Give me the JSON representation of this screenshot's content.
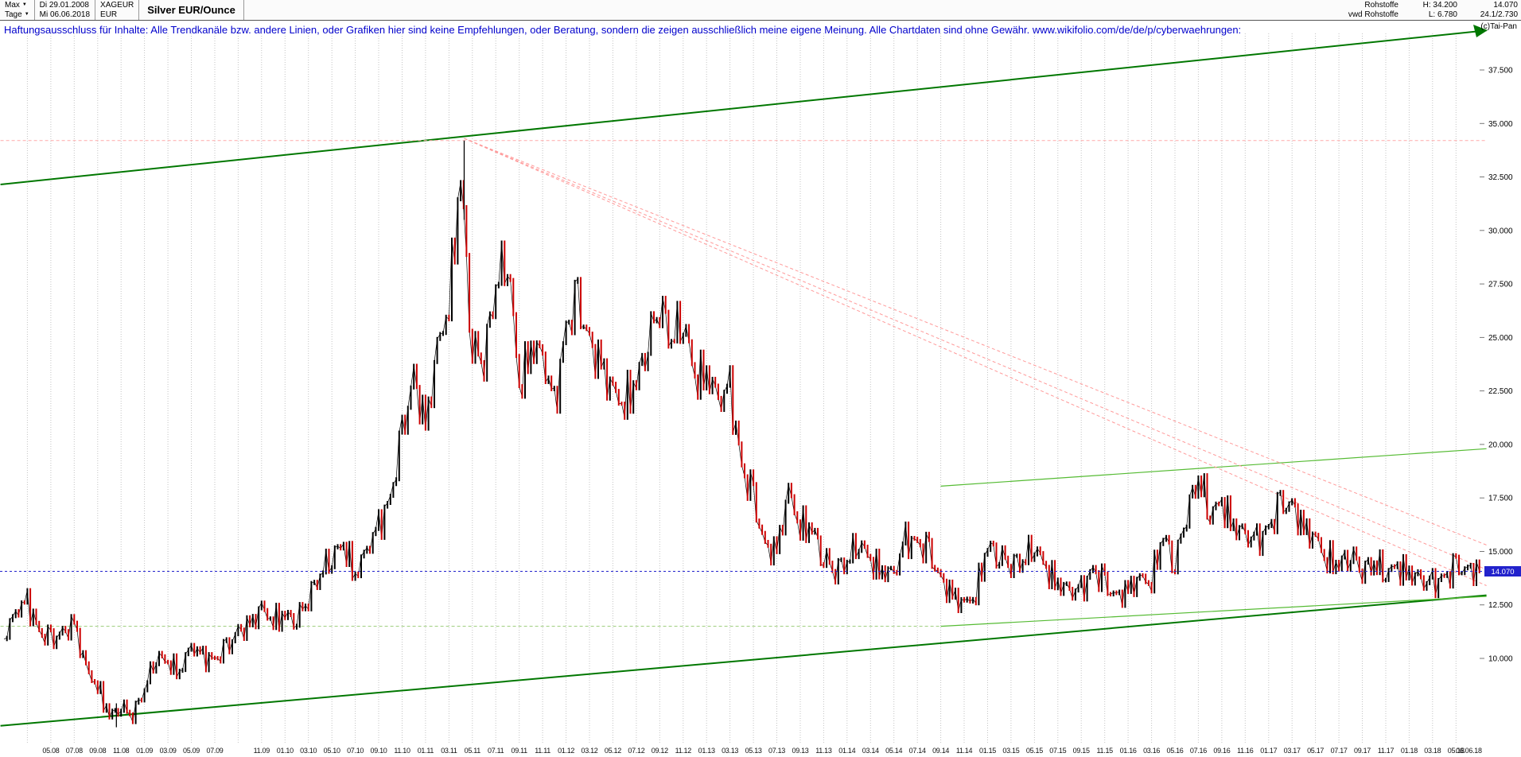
{
  "window": {
    "title": "Silver EUR/Ounce",
    "range_selector": "Max",
    "period_selector": "Tage",
    "start_date": "Di 29.01.2008",
    "end_date": "Mi 06.06.2018",
    "symbol": "XAGEUR",
    "currency": "EUR",
    "category": "Rohstoffe",
    "feed": "vwd Rohstoffe",
    "high_label": "H: 34.200",
    "low_label": "L: 6.780",
    "last_price": "14.070",
    "change_info": "24.1/2.730",
    "copyright": "(c)Tai-Pan"
  },
  "disclaimer": "Haftungsausschluss für Inhalte: Alle Trendkanäle bzw. andere Linien, oder Grafiken hier sind keine Empfehlungen, oder Beratung, sondern die zeigen ausschließlich meine eigene Meinung. Alle Chartdaten sind ohne Gewähr.  www.wikifolio.com/de/de/p/cyberwaehrungen:",
  "chart_data": {
    "type": "candlestick",
    "title": "Silver EUR/Ounce",
    "ylabel": "EUR",
    "ylim": [
      6.1,
      39.2
    ],
    "x_unit": "months since 2008-01",
    "high": 34.2,
    "low": 6.78,
    "last_price": 14.07,
    "last_price_label": "14.070",
    "grid": "vertical-dotted",
    "legend_position": "none",
    "yticks": [
      {
        "label": "37.500",
        "value": 37.5
      },
      {
        "label": "35.000",
        "value": 35.0
      },
      {
        "label": "32.500",
        "value": 32.5
      },
      {
        "label": "30.000",
        "value": 30.0
      },
      {
        "label": "27.500",
        "value": 27.5
      },
      {
        "label": "25.000",
        "value": 25.0
      },
      {
        "label": "22.500",
        "value": 22.5
      },
      {
        "label": "20.000",
        "value": 20.0
      },
      {
        "label": "17.500",
        "value": 17.5
      },
      {
        "label": "15.000",
        "value": 15.0
      },
      {
        "label": "12.500",
        "value": 12.5
      },
      {
        "label": "10.000",
        "value": 10.0
      }
    ],
    "xticks": [
      [
        "05.08",
        4
      ],
      [
        "07.08",
        6
      ],
      [
        "09.08",
        8
      ],
      [
        "11.08",
        10
      ],
      [
        "01.09",
        12
      ],
      [
        "03.09",
        14
      ],
      [
        "05.09",
        16
      ],
      [
        "07.09",
        18
      ],
      [
        "11.09",
        22
      ],
      [
        "01.10",
        24
      ],
      [
        "03.10",
        26
      ],
      [
        "05.10",
        28
      ],
      [
        "07.10",
        30
      ],
      [
        "09.10",
        32
      ],
      [
        "11.10",
        34
      ],
      [
        "01.11",
        36
      ],
      [
        "03.11",
        38
      ],
      [
        "05.11",
        40
      ],
      [
        "07.11",
        42
      ],
      [
        "09.11",
        44
      ],
      [
        "11.11",
        46
      ],
      [
        "01.12",
        48
      ],
      [
        "03.12",
        50
      ],
      [
        "05.12",
        52
      ],
      [
        "07.12",
        54
      ],
      [
        "09.12",
        56
      ],
      [
        "11.12",
        58
      ],
      [
        "01.13",
        60
      ],
      [
        "03.13",
        62
      ],
      [
        "05.13",
        64
      ],
      [
        "07.13",
        66
      ],
      [
        "09.13",
        68
      ],
      [
        "11.13",
        70
      ],
      [
        "01.14",
        72
      ],
      [
        "03.14",
        74
      ],
      [
        "05.14",
        76
      ],
      [
        "07.14",
        78
      ],
      [
        "09.14",
        80
      ],
      [
        "11.14",
        82
      ],
      [
        "01.15",
        84
      ],
      [
        "03.15",
        86
      ],
      [
        "05.15",
        88
      ],
      [
        "07.15",
        90
      ],
      [
        "09.15",
        92
      ],
      [
        "11.15",
        94
      ],
      [
        "01.16",
        96
      ],
      [
        "03.16",
        98
      ],
      [
        "05.16",
        100
      ],
      [
        "07.16",
        102
      ],
      [
        "09.16",
        104
      ],
      [
        "11.16",
        106
      ],
      [
        "01.17",
        108
      ],
      [
        "03.17",
        110
      ],
      [
        "05.17",
        112
      ],
      [
        "07.17",
        114
      ],
      [
        "09.17",
        116
      ],
      [
        "11.17",
        118
      ],
      [
        "01.18",
        120
      ],
      [
        "03.18",
        122
      ],
      [
        "05.18",
        124
      ],
      [
        "06.06.18",
        126.2
      ]
    ],
    "series_monthly": {
      "name": "XAGEUR close (EUR/oz, approx.)",
      "start": "2008-01",
      "end": "2018-06",
      "closes": [
        10.9,
        12.2,
        12.6,
        11.2,
        10.8,
        11.1,
        11.6,
        9.5,
        8.7,
        7.3,
        7.8,
        7.4,
        8.6,
        10.2,
        9.8,
        9.4,
        10.6,
        10.0,
        9.9,
        10.4,
        11.2,
        11.5,
        12.3,
        11.8,
        12.0,
        11.9,
        12.9,
        14.0,
        14.9,
        15.3,
        13.9,
        15.1,
        16.1,
        17.4,
        20.4,
        23.1,
        20.7,
        24.4,
        26.7,
        32.6,
        24.6,
        24.1,
        27.6,
        29.0,
        22.6,
        24.6,
        24.1,
        21.6,
        25.4,
        26.6,
        24.6,
        23.6,
        22.4,
        22.0,
        22.9,
        25.0,
        26.7,
        25.0,
        26.1,
        23.0,
        23.4,
        22.0,
        22.5,
        18.8,
        17.4,
        15.1,
        15.0,
        17.8,
        16.2,
        16.1,
        14.8,
        14.2,
        14.6,
        15.6,
        14.5,
        14.1,
        13.9,
        15.5,
        15.3,
        14.9,
        13.6,
        12.9,
        12.5,
        13.1,
        15.3,
        14.9,
        14.5,
        14.6,
        15.4,
        14.1,
        13.5,
        13.1,
        13.1,
        14.1,
        13.4,
        12.8,
        13.2,
        13.7,
        13.7,
        15.8,
        14.5,
        16.9,
        18.5,
        16.9,
        17.2,
        16.2,
        15.7,
        15.4,
        16.0,
        17.1,
        17.1,
        16.0,
        15.6,
        14.7,
        14.4,
        15.0,
        14.2,
        14.5,
        14.1,
        14.2,
        14.0,
        13.6,
        13.4,
        13.7,
        14.2,
        14.07
      ]
    },
    "extreme_wicks": [
      {
        "m": 39.3,
        "from": 30.5,
        "to": 34.2
      },
      {
        "m": 9.6,
        "from": 7.9,
        "to": 6.78
      }
    ],
    "overlays": [
      {
        "name": "trend-channel-upper",
        "color": "#007700",
        "width": 2,
        "dash": "",
        "m1": -0.3,
        "p1": 32.15,
        "m2": 126.6,
        "p2": 39.35
      },
      {
        "name": "trend-channel-lower",
        "color": "#007700",
        "width": 2,
        "dash": "",
        "m1": -0.3,
        "p1": 6.85,
        "m2": 126.6,
        "p2": 12.95
      },
      {
        "name": "resistance-line-mid",
        "color": "#55bb33",
        "width": 1.2,
        "dash": "",
        "m1": 80,
        "p1": 18.05,
        "m2": 126.6,
        "p2": 19.8
      },
      {
        "name": "support-line-recent",
        "color": "#55bb33",
        "width": 1.2,
        "dash": "",
        "m1": 80,
        "p1": 11.5,
        "m2": 126.6,
        "p2": 12.9
      },
      {
        "name": "support-level-dashed",
        "color": "#99cc77",
        "width": 1,
        "dash": "4 3",
        "m1": -0.3,
        "p1": 11.5,
        "m2": 80,
        "p2": 11.5
      },
      {
        "name": "ath-level-dashed",
        "color": "#ffaaaa",
        "width": 1,
        "dash": "4 3",
        "m1": -0.3,
        "p1": 34.2,
        "m2": 126.6,
        "p2": 34.2
      },
      {
        "name": "fan-line-1",
        "color": "#ff9999",
        "width": 1,
        "dash": "4 3",
        "m1": 39.3,
        "p1": 34.3,
        "m2": 126.6,
        "p2": 15.3
      },
      {
        "name": "fan-line-2",
        "color": "#ff9999",
        "width": 1,
        "dash": "4 3",
        "m1": 39.3,
        "p1": 34.3,
        "m2": 126.6,
        "p2": 14.15
      },
      {
        "name": "fan-line-3",
        "color": "#ff9999",
        "width": 1,
        "dash": "4 3",
        "m1": 39.3,
        "p1": 34.3,
        "m2": 126.6,
        "p2": 13.4
      }
    ],
    "colors": {
      "up": "#000000",
      "down": "#cc0000",
      "grid": "#c3c3c3",
      "channel": "#007700",
      "minor_trend": "#55bb33",
      "fan": "#ff9999",
      "current": "#2222cc",
      "disclaimer_text": "#0000cc"
    }
  }
}
